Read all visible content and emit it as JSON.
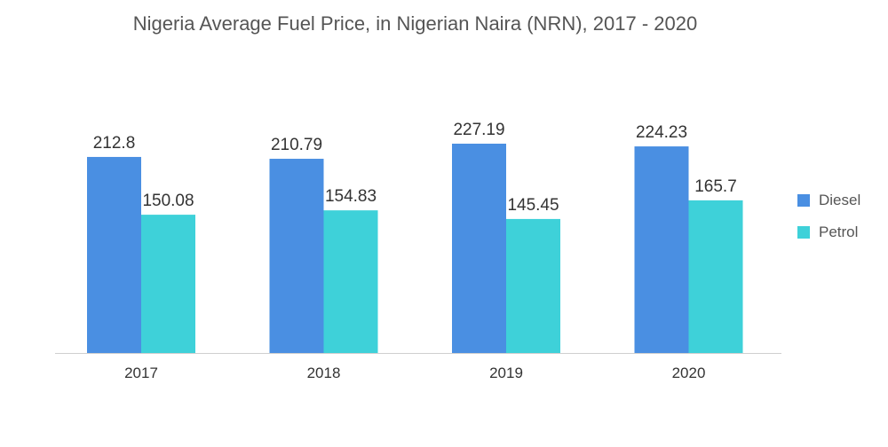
{
  "chart_data": {
    "type": "bar",
    "title": "Nigeria Average Fuel Price, in Nigerian Naira (NRN), 2017 - 2020",
    "categories": [
      "2017",
      "2018",
      "2019",
      "2020"
    ],
    "series": [
      {
        "name": "Diesel",
        "color": "#4A8FE2",
        "values": [
          212.8,
          210.79,
          227.19,
          224.23
        ],
        "labels": [
          "212.8",
          "210.79",
          "227.19",
          "224.23"
        ]
      },
      {
        "name": "Petrol",
        "color": "#3ED1D9",
        "values": [
          150.08,
          154.83,
          145.45,
          165.7
        ],
        "labels": [
          "150.08",
          "154.83",
          "145.45",
          "165.7"
        ]
      }
    ],
    "xlabel": "",
    "ylabel": "",
    "ylim": [
      0,
      227.19
    ],
    "grid": false,
    "legend_position": "right"
  }
}
